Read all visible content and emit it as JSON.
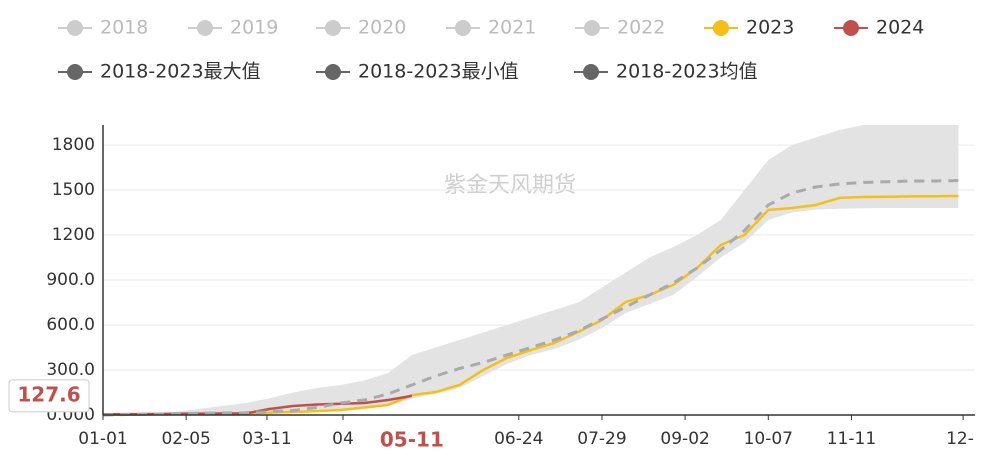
{
  "chart_data": {
    "type": "line",
    "watermark": "紫金天风期货",
    "x": [
      0,
      10,
      20,
      30,
      40,
      50,
      60,
      70,
      80,
      90,
      100,
      110,
      120,
      130,
      140,
      150,
      160,
      170,
      180,
      190,
      200,
      210,
      220,
      230,
      240,
      250,
      260,
      270,
      280,
      290,
      300,
      310,
      320,
      330,
      340,
      350,
      360
    ],
    "xlim": [
      0,
      367
    ],
    "xticks": [
      {
        "value": 0,
        "label": "01-01"
      },
      {
        "value": 35,
        "label": "02-05"
      },
      {
        "value": 69,
        "label": "03-11"
      },
      {
        "value": 101,
        "label": "04"
      },
      {
        "value": 175,
        "label": "06-24"
      },
      {
        "value": 210,
        "label": "07-29"
      },
      {
        "value": 245,
        "label": "09-02"
      },
      {
        "value": 280,
        "label": "10-07"
      },
      {
        "value": 315,
        "label": "11-11"
      },
      {
        "value": 362,
        "label": "12-"
      }
    ],
    "ylim": [
      0,
      1933
    ],
    "yticks": [
      {
        "value": 0,
        "label": "0.000"
      },
      {
        "value": 300,
        "label": "300.0"
      },
      {
        "value": 600,
        "label": "600.0"
      },
      {
        "value": 900,
        "label": "900.0"
      },
      1200,
      1500,
      1800
    ],
    "grid": true,
    "axis_pointer": {
      "x": {
        "value": 130,
        "label": "05-11"
      },
      "y": 127.6,
      "color": "#c0504d"
    },
    "series": [
      {
        "name": "2018",
        "color": "#cccccc",
        "visible": false
      },
      {
        "name": "2019",
        "color": "#cccccc",
        "visible": false
      },
      {
        "name": "2020",
        "color": "#cccccc",
        "visible": false
      },
      {
        "name": "2021",
        "color": "#cccccc",
        "visible": false
      },
      {
        "name": "2022",
        "color": "#cccccc",
        "visible": false
      },
      {
        "name": "2023",
        "color": "#f5bf1a",
        "values": [
          0,
          2,
          4,
          6,
          8,
          10,
          12,
          16,
          20,
          26,
          33,
          50,
          67,
          133,
          153,
          200,
          300,
          380,
          433,
          480,
          553,
          633,
          753,
          800,
          867,
          980,
          1133,
          1200,
          1367,
          1380,
          1400,
          1447,
          1453,
          1455,
          1457,
          1458,
          1460
        ]
      },
      {
        "name": "2024",
        "color": "#c0504d",
        "values": [
          5,
          6,
          7,
          8,
          9,
          10,
          10,
          40,
          60,
          70,
          75,
          80,
          100,
          127.6,
          null,
          null,
          null,
          null,
          null,
          null,
          null,
          null,
          null,
          null,
          null,
          null,
          null,
          null,
          null,
          null,
          null,
          null,
          null,
          null,
          null,
          null,
          null
        ]
      },
      {
        "name": "2018-2023最大值",
        "color": "#666666",
        "band": "max",
        "values": [
          0,
          5,
          10,
          20,
          40,
          60,
          80,
          110,
          150,
          180,
          200,
          230,
          280,
          400,
          450,
          500,
          550,
          600,
          650,
          700,
          750,
          850,
          950,
          1050,
          1120,
          1200,
          1300,
          1500,
          1700,
          1800,
          1850,
          1900,
          1933,
          1933,
          1933,
          1933,
          1933
        ]
      },
      {
        "name": "2018-2023最小值",
        "color": "#666666",
        "band": "min",
        "values": [
          0,
          1,
          2,
          3,
          4,
          5,
          6,
          10,
          15,
          20,
          25,
          40,
          60,
          110,
          140,
          180,
          260,
          340,
          400,
          440,
          500,
          580,
          680,
          740,
          800,
          920,
          1050,
          1150,
          1300,
          1350,
          1370,
          1375,
          1378,
          1380,
          1380,
          1380,
          1380
        ]
      },
      {
        "name": "2018-2023均值",
        "color": "#666666",
        "dashed": true,
        "values": [
          0,
          3,
          6,
          9,
          11,
          13,
          15,
          22,
          30,
          50,
          80,
          100,
          140,
          200,
          260,
          310,
          350,
          400,
          450,
          500,
          560,
          640,
          720,
          800,
          880,
          980,
          1100,
          1230,
          1400,
          1480,
          1520,
          1540,
          1550,
          1555,
          1560,
          1560,
          1563
        ]
      }
    ]
  }
}
